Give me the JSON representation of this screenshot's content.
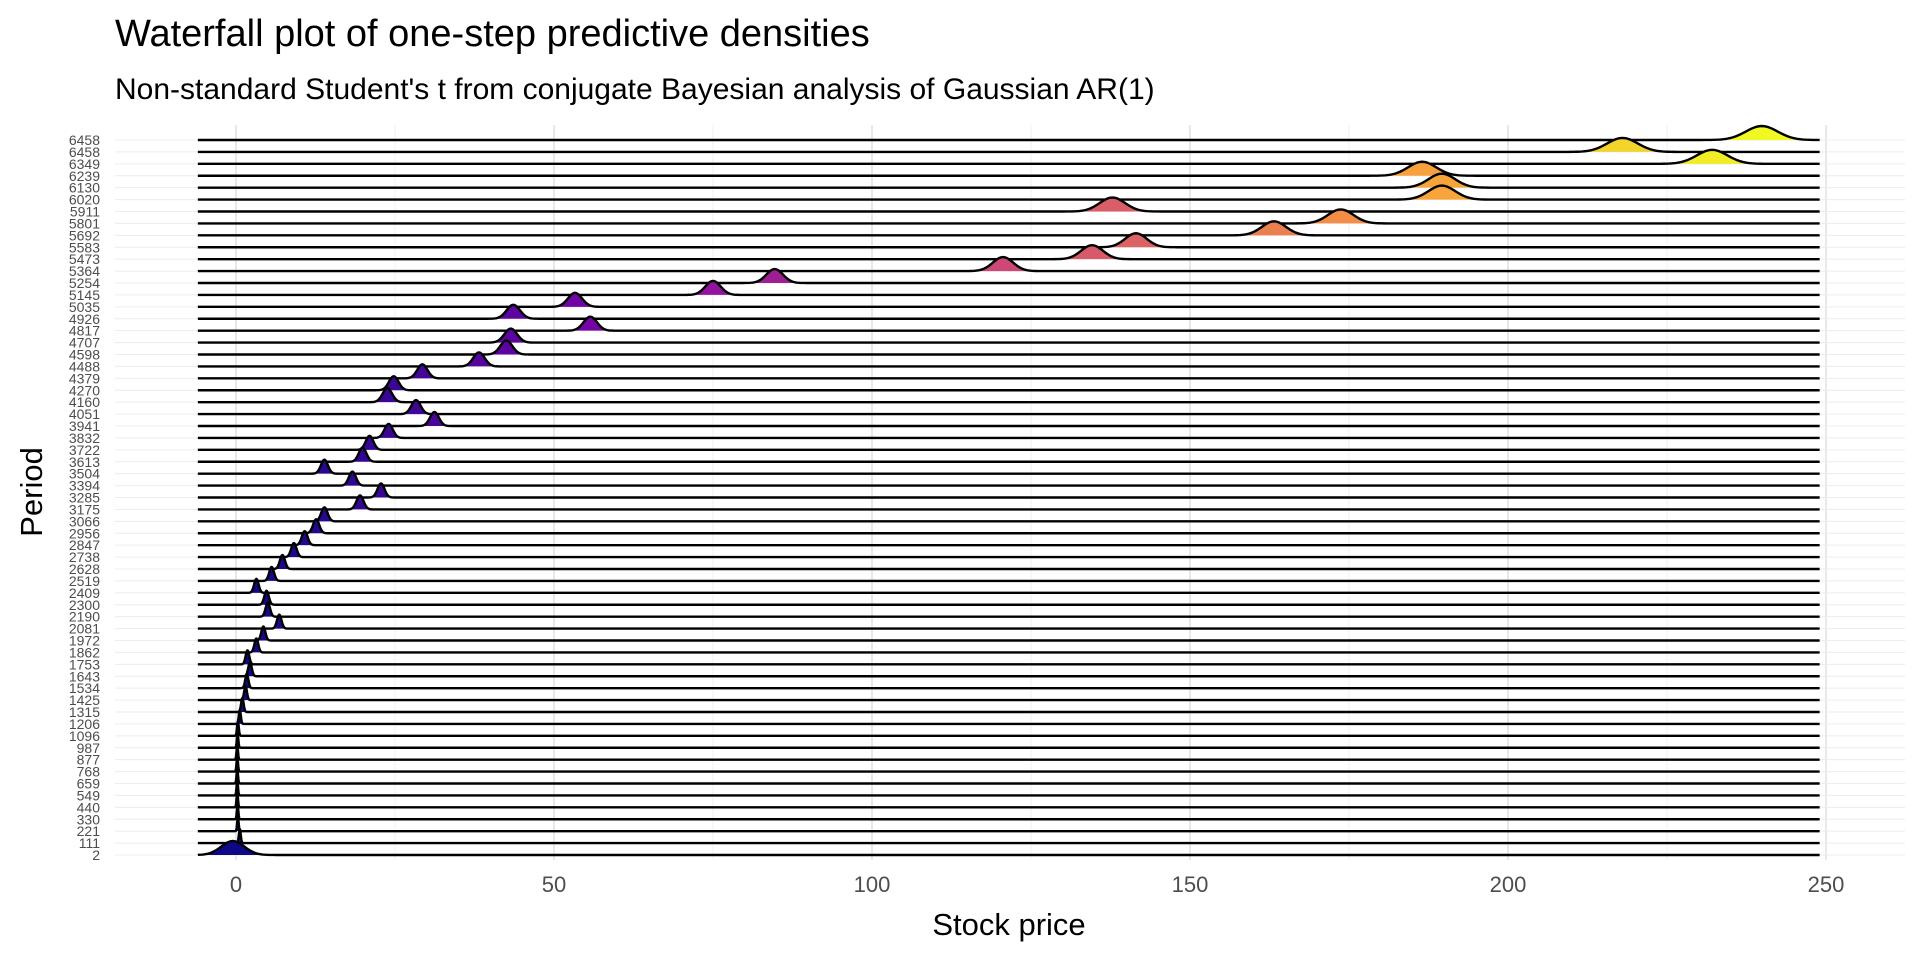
{
  "chart_data": {
    "type": "ridgeline",
    "title": "Waterfall plot of one-step predictive densities",
    "subtitle": "Non-standard Student's t from conjugate Bayesian analysis of Gaussian AR(1)",
    "xlabel": "Stock price",
    "ylabel": "Period",
    "xlim": [
      -6,
      249
    ],
    "x_ticks": [
      0,
      50,
      100,
      150,
      200,
      250
    ],
    "grid": true,
    "legend": "none",
    "colors": {
      "low": "#0d0887",
      "mid": "#cc4778",
      "high": "#f0f921",
      "line": "#000000",
      "grid": "#ebebeb",
      "axis_text": "#4d4d4d"
    },
    "series": [
      {
        "period": "2",
        "mean": -0.5,
        "sd": 1.8
      },
      {
        "period": "111",
        "mean": 0.6,
        "sd": 0.15
      },
      {
        "period": "221",
        "mean": 0.3,
        "sd": 0.12
      },
      {
        "period": "330",
        "mean": 0.25,
        "sd": 0.12
      },
      {
        "period": "440",
        "mean": 0.2,
        "sd": 0.12
      },
      {
        "period": "549",
        "mean": 0.2,
        "sd": 0.12
      },
      {
        "period": "659",
        "mean": 0.2,
        "sd": 0.12
      },
      {
        "period": "768",
        "mean": 0.2,
        "sd": 0.12
      },
      {
        "period": "877",
        "mean": 0.2,
        "sd": 0.12
      },
      {
        "period": "987",
        "mean": 0.25,
        "sd": 0.12
      },
      {
        "period": "1096",
        "mean": 0.3,
        "sd": 0.14
      },
      {
        "period": "1206",
        "mean": 0.6,
        "sd": 0.16
      },
      {
        "period": "1315",
        "mean": 1.0,
        "sd": 0.2
      },
      {
        "period": "1425",
        "mean": 1.5,
        "sd": 0.22
      },
      {
        "period": "1534",
        "mean": 1.7,
        "sd": 0.25
      },
      {
        "period": "1643",
        "mean": 2.2,
        "sd": 0.28
      },
      {
        "period": "1753",
        "mean": 1.8,
        "sd": 0.28
      },
      {
        "period": "1862",
        "mean": 3.2,
        "sd": 0.3
      },
      {
        "period": "1972",
        "mean": 4.3,
        "sd": 0.32
      },
      {
        "period": "2081",
        "mean": 6.8,
        "sd": 0.35
      },
      {
        "period": "2190",
        "mean": 5.0,
        "sd": 0.35
      },
      {
        "period": "2300",
        "mean": 4.8,
        "sd": 0.35
      },
      {
        "period": "2409",
        "mean": 3.2,
        "sd": 0.35
      },
      {
        "period": "2519",
        "mean": 5.6,
        "sd": 0.38
      },
      {
        "period": "2628",
        "mean": 7.3,
        "sd": 0.4
      },
      {
        "period": "2738",
        "mean": 9.1,
        "sd": 0.42
      },
      {
        "period": "2847",
        "mean": 10.8,
        "sd": 0.45
      },
      {
        "period": "2956",
        "mean": 12.6,
        "sd": 0.48
      },
      {
        "period": "3066",
        "mean": 13.9,
        "sd": 0.5
      },
      {
        "period": "3175",
        "mean": 19.5,
        "sd": 0.55
      },
      {
        "period": "3285",
        "mean": 22.8,
        "sd": 0.55
      },
      {
        "period": "3394",
        "mean": 18.3,
        "sd": 0.55
      },
      {
        "period": "3504",
        "mean": 13.9,
        "sd": 0.55
      },
      {
        "period": "3613",
        "mean": 19.9,
        "sd": 0.6
      },
      {
        "period": "3722",
        "mean": 21.0,
        "sd": 0.6
      },
      {
        "period": "3832",
        "mean": 24.0,
        "sd": 0.65
      },
      {
        "period": "3941",
        "mean": 31.2,
        "sd": 0.7
      },
      {
        "period": "4051",
        "mean": 28.3,
        "sd": 0.72
      },
      {
        "period": "4160",
        "mean": 23.8,
        "sd": 0.75
      },
      {
        "period": "4270",
        "mean": 24.8,
        "sd": 0.75
      },
      {
        "period": "4379",
        "mean": 29.3,
        "sd": 0.8
      },
      {
        "period": "4488",
        "mean": 38.2,
        "sd": 0.9
      },
      {
        "period": "4598",
        "mean": 42.5,
        "sd": 0.95
      },
      {
        "period": "4707",
        "mean": 43.2,
        "sd": 1.0
      },
      {
        "period": "4817",
        "mean": 55.7,
        "sd": 1.05
      },
      {
        "period": "4926",
        "mean": 43.6,
        "sd": 1.05
      },
      {
        "period": "5035",
        "mean": 53.3,
        "sd": 1.1
      },
      {
        "period": "5145",
        "mean": 75.0,
        "sd": 1.2
      },
      {
        "period": "5254",
        "mean": 84.7,
        "sd": 1.3
      },
      {
        "period": "5364",
        "mean": 120.6,
        "sd": 1.6
      },
      {
        "period": "5473",
        "mean": 134.6,
        "sd": 1.7
      },
      {
        "period": "5583",
        "mean": 141.5,
        "sd": 1.7
      },
      {
        "period": "5692",
        "mean": 163.2,
        "sd": 1.9
      },
      {
        "period": "5801",
        "mean": 173.7,
        "sd": 2.0
      },
      {
        "period": "5911",
        "mean": 137.8,
        "sd": 2.0
      },
      {
        "period": "6020",
        "mean": 189.6,
        "sd": 2.1
      },
      {
        "period": "6130",
        "mean": 189.6,
        "sd": 2.1
      },
      {
        "period": "6239",
        "mean": 186.5,
        "sd": 2.2
      },
      {
        "period": "6349",
        "mean": 232.1,
        "sd": 2.4
      },
      {
        "period": "6458",
        "mean": 218.0,
        "sd": 2.4
      },
      {
        "period": "6458",
        "mean": 239.9,
        "sd": 2.5
      }
    ]
  }
}
